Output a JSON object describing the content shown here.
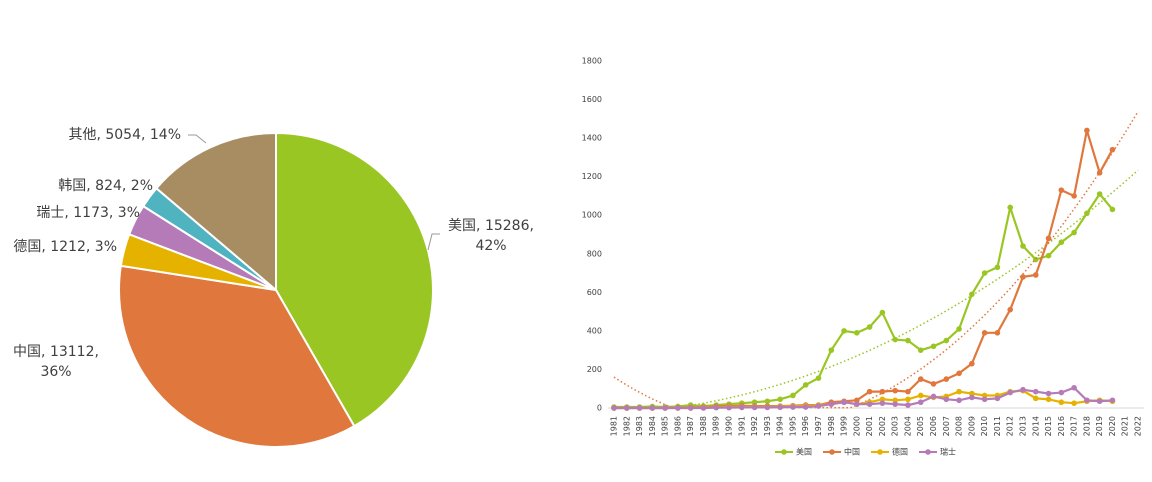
{
  "chart_data": [
    {
      "type": "pie",
      "labels": [
        [
          "美国, 15286,",
          "42%"
        ],
        [
          "中国, 13112,",
          "36%"
        ],
        [
          "德国, 1212, 3%"
        ],
        [
          "瑞士, 1173, 3%"
        ],
        [
          "韩国, 824, 2%"
        ],
        [
          "其他, 5054, 14%"
        ]
      ],
      "values": [
        15286,
        13112,
        1212,
        1173,
        824,
        5054
      ],
      "colors": [
        "#9ac623",
        "#e0773c",
        "#e6b200",
        "#b57ab8",
        "#4fb3c0",
        "#a88c62"
      ]
    },
    {
      "type": "line",
      "categories": [
        "1981",
        "1982",
        "1983",
        "1984",
        "1985",
        "1986",
        "1987",
        "1988",
        "1989",
        "1990",
        "1991",
        "1992",
        "1993",
        "1994",
        "1995",
        "1996",
        "1997",
        "1998",
        "1999",
        "2000",
        "2001",
        "2002",
        "2003",
        "2004",
        "2005",
        "2006",
        "2007",
        "2008",
        "2009",
        "2010",
        "2011",
        "2012",
        "2013",
        "2014",
        "2015",
        "2016",
        "2017",
        "2018",
        "2019",
        "2020",
        "2021",
        "2022"
      ],
      "ylim": [
        0,
        1800
      ],
      "yticks": [
        0,
        200,
        400,
        600,
        800,
        1000,
        1200,
        1400,
        1600,
        1800
      ],
      "series": [
        {
          "name": "美国",
          "color": "#9ac623",
          "trendline": true,
          "values": [
            5,
            5,
            5,
            8,
            5,
            8,
            15,
            10,
            15,
            20,
            25,
            30,
            35,
            45,
            65,
            120,
            155,
            300,
            400,
            390,
            420,
            495,
            355,
            350,
            300,
            320,
            350,
            410,
            590,
            700,
            730,
            1040,
            840,
            770,
            790,
            860,
            910,
            1010,
            1110,
            1030,
            null,
            null
          ]
        },
        {
          "name": "中国",
          "color": "#e0773c",
          "trendline": true,
          "values": [
            0,
            0,
            0,
            0,
            0,
            2,
            3,
            5,
            8,
            10,
            12,
            10,
            10,
            10,
            12,
            15,
            15,
            30,
            35,
            40,
            85,
            85,
            90,
            85,
            150,
            125,
            150,
            180,
            230,
            390,
            390,
            510,
            680,
            690,
            880,
            1130,
            1100,
            1440,
            1220,
            1340,
            null,
            null
          ]
        },
        {
          "name": "德国",
          "color": "#e6b200",
          "values": [
            0,
            0,
            0,
            0,
            0,
            0,
            0,
            2,
            3,
            5,
            5,
            5,
            5,
            8,
            10,
            10,
            15,
            20,
            30,
            20,
            30,
            45,
            40,
            45,
            65,
            55,
            60,
            85,
            75,
            65,
            65,
            85,
            90,
            50,
            45,
            30,
            25,
            35,
            40,
            35,
            null,
            null
          ]
        },
        {
          "name": "瑞士",
          "color": "#b57ab8",
          "values": [
            0,
            0,
            0,
            0,
            0,
            0,
            0,
            0,
            2,
            2,
            3,
            3,
            3,
            4,
            5,
            5,
            10,
            20,
            30,
            20,
            20,
            25,
            20,
            15,
            30,
            60,
            45,
            40,
            55,
            45,
            50,
            80,
            95,
            85,
            75,
            80,
            105,
            40,
            35,
            40,
            null,
            null
          ]
        }
      ]
    }
  ]
}
